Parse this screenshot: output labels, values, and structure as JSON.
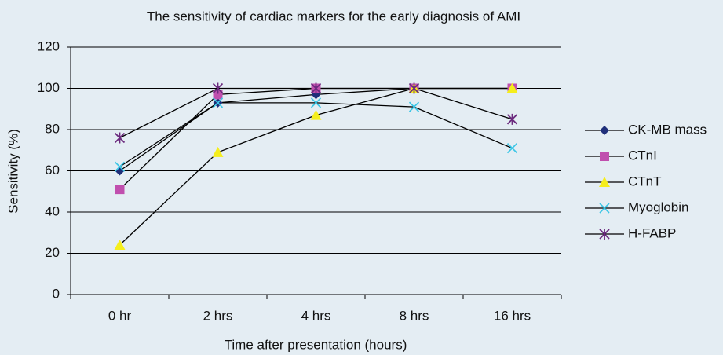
{
  "chart_data": {
    "type": "line",
    "title": "The sensitivity of cardiac markers for the early diagnosis of AMI",
    "x_label": "Time after presentation (hours)",
    "y_label": "Sensitivity (%)",
    "categories": [
      "0 hr",
      "2 hrs",
      "4 hrs",
      "8 hrs",
      "16 hrs"
    ],
    "ylim": [
      0,
      120
    ],
    "yticks": [
      0,
      20,
      40,
      60,
      80,
      100,
      120
    ],
    "grid": true,
    "legend": "right",
    "series": [
      {
        "name": "CK-MB mass",
        "color": "#1f2f7a",
        "marker": "diamond",
        "values": [
          60,
          93,
          97,
          100,
          100
        ]
      },
      {
        "name": "CTnI",
        "color": "#c04fae",
        "marker": "square",
        "values": [
          51,
          97,
          100,
          100,
          100
        ]
      },
      {
        "name": "CTnT",
        "color": "#f5ee1c",
        "marker": "triangle",
        "values": [
          24,
          69,
          87,
          100,
          100
        ]
      },
      {
        "name": "Myoglobin",
        "color": "#3cc6e6",
        "marker": "x",
        "values": [
          62,
          93,
          93,
          91,
          71
        ]
      },
      {
        "name": "H-FABP",
        "color": "#6b2a7e",
        "marker": "star",
        "values": [
          76,
          100,
          100,
          100,
          85
        ]
      }
    ]
  }
}
